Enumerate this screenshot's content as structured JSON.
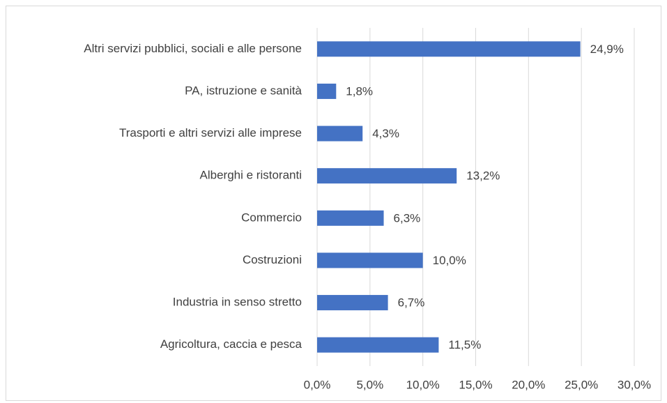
{
  "chart_data": {
    "type": "bar",
    "orientation": "horizontal",
    "categories": [
      "Altri servizi pubblici, sociali e alle persone",
      "PA, istruzione e sanità",
      "Trasporti e altri servizi alle imprese",
      "Alberghi e ristoranti",
      "Commercio",
      "Costruzioni",
      "Industria in senso stretto",
      "Agricoltura, caccia e pesca"
    ],
    "values": [
      24.9,
      1.8,
      4.3,
      13.2,
      6.3,
      10.0,
      6.7,
      11.5
    ],
    "value_labels": [
      "24,9%",
      "1,8%",
      "4,3%",
      "13,2%",
      "6,3%",
      "10,0%",
      "6,7%",
      "11,5%"
    ],
    "color": "#4472c4",
    "xlim": [
      0,
      30
    ],
    "xticks": [
      {
        "value": 0,
        "label": "0,0%"
      },
      {
        "value": 5,
        "label": "5,0%"
      },
      {
        "value": 10,
        "label": "10,0%"
      },
      {
        "value": 15,
        "label": "15,0%"
      },
      {
        "value": 20,
        "label": "20,0%"
      },
      {
        "value": 25,
        "label": "25,0%"
      },
      {
        "value": 30,
        "label": "30,0%"
      }
    ],
    "grid": true
  }
}
